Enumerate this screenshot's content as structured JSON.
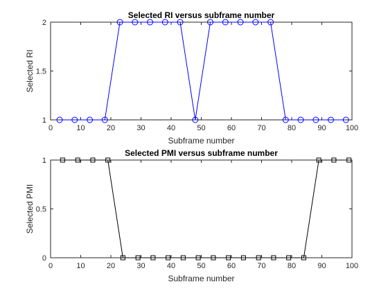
{
  "figure": {
    "background": "#ffffff"
  },
  "chart_data": [
    {
      "type": "line",
      "title": "Selected RI versus subframe number",
      "xlabel": "Subframe number",
      "ylabel": "Selected RI",
      "xlim": [
        0,
        100
      ],
      "ylim": [
        1,
        2
      ],
      "xticks": [
        0,
        10,
        20,
        30,
        40,
        50,
        60,
        70,
        80,
        90,
        100
      ],
      "yticks": [
        1,
        1.5,
        2
      ],
      "ytick_labels": [
        "1",
        "1.5",
        "2"
      ],
      "grid": false,
      "marker": "circle",
      "series": [
        {
          "color": "#0000ff",
          "x": [
            3,
            8,
            13,
            18,
            23,
            28,
            33,
            38,
            43,
            48,
            53,
            58,
            63,
            68,
            73,
            78,
            83,
            88,
            93,
            98
          ],
          "values": [
            1,
            1,
            1,
            1,
            2,
            2,
            2,
            2,
            2,
            1,
            2,
            2,
            2,
            2,
            2,
            1,
            1,
            1,
            1,
            1
          ]
        }
      ]
    },
    {
      "type": "line",
      "title": "Selected PMI versus subframe number",
      "xlabel": "Subframe number",
      "ylabel": "Selected PMI",
      "xlim": [
        0,
        100
      ],
      "ylim": [
        0,
        1
      ],
      "xticks": [
        0,
        10,
        20,
        30,
        40,
        50,
        60,
        70,
        80,
        90,
        100
      ],
      "yticks": [
        0,
        0.5,
        1
      ],
      "ytick_labels": [
        "0",
        "0.5",
        "1"
      ],
      "grid": false,
      "marker": "square",
      "series": [
        {
          "color": "#000000",
          "x": [
            4,
            9,
            14,
            19,
            24,
            29,
            34,
            39,
            44,
            49,
            54,
            59,
            64,
            69,
            74,
            79,
            84,
            89,
            94,
            99
          ],
          "values": [
            1,
            1,
            1,
            1,
            0,
            0,
            0,
            0,
            0,
            0,
            0,
            0,
            0,
            0,
            0,
            0,
            0,
            1,
            1,
            1
          ]
        }
      ]
    }
  ]
}
